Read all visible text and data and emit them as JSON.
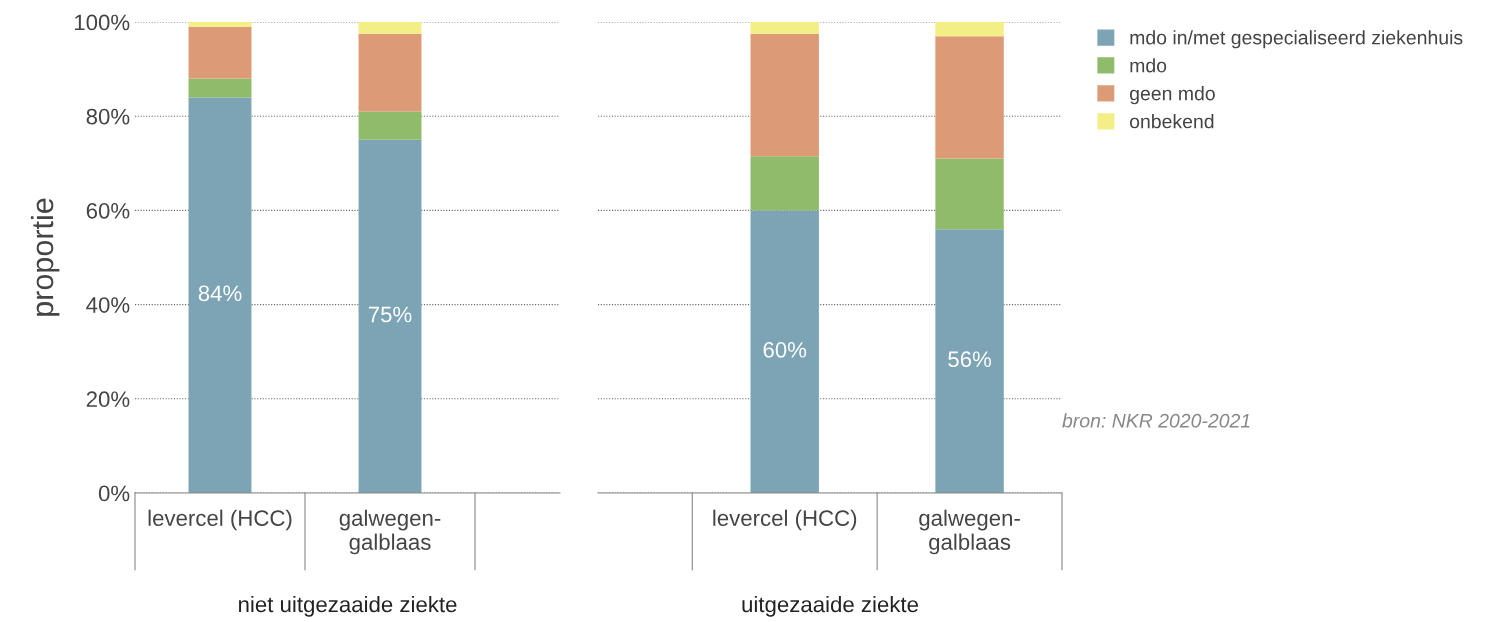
{
  "chart_data": [
    {
      "type": "bar",
      "stacked": true,
      "xlabel": "niet uitgezaaide ziekte",
      "ylabel": "proportie",
      "categories": [
        "levercel (HCC)",
        "galwegen-\ngalblaas",
        null
      ],
      "ylim": [
        0,
        100
      ],
      "yticks": [
        {
          "value": 0,
          "label": "0%"
        },
        {
          "value": 20,
          "label": "20%"
        },
        {
          "value": 40,
          "label": "40%"
        },
        {
          "value": 60,
          "label": "60%"
        },
        {
          "value": 80,
          "label": "80%"
        },
        {
          "value": 100,
          "label": "100%"
        }
      ],
      "grid": "y",
      "legend": false,
      "series": [
        {
          "color": "#7ca4b5",
          "values": [
            84,
            75,
            null
          ],
          "value_labels": [
            "84%",
            "75%",
            null
          ]
        },
        {
          "color": "#8fbb6b",
          "values": [
            4,
            6,
            null
          ]
        },
        {
          "color": "#dc9a76",
          "values": [
            11,
            16.5,
            null
          ]
        },
        {
          "color": "#f3ee85",
          "values": [
            1,
            2.5,
            null
          ]
        }
      ]
    },
    {
      "type": "bar",
      "stacked": true,
      "xlabel": "uitgezaaide ziekte",
      "categories": [
        null,
        "levercel (HCC)",
        "galwegen-\ngalblaas"
      ],
      "ylim": [
        0,
        100
      ],
      "yticks": [
        {
          "value": 0,
          "label": null
        },
        {
          "value": 20,
          "label": null
        },
        {
          "value": 40,
          "label": null
        },
        {
          "value": 60,
          "label": null
        },
        {
          "value": 80,
          "label": null
        },
        {
          "value": 100,
          "label": null
        }
      ],
      "grid": "y",
      "legend": "top right",
      "tick_labels": "x",
      "annotations": [
        "bron: NKR 2020-2021"
      ],
      "series": [
        {
          "name": "mdo in/met gespecialiseerd ziekenhuis",
          "color": "#7ca4b5",
          "values": [
            null,
            60,
            56
          ],
          "value_labels": [
            null,
            "60%",
            "56%"
          ]
        },
        {
          "name": "mdo",
          "color": "#8fbb6b",
          "values": [
            null,
            11.5,
            15
          ]
        },
        {
          "name": "geen mdo",
          "color": "#dc9a76",
          "values": [
            null,
            26,
            26
          ]
        },
        {
          "name": "onbekend",
          "color": "#f3ee85",
          "values": [
            null,
            2.5,
            3
          ]
        }
      ]
    }
  ]
}
